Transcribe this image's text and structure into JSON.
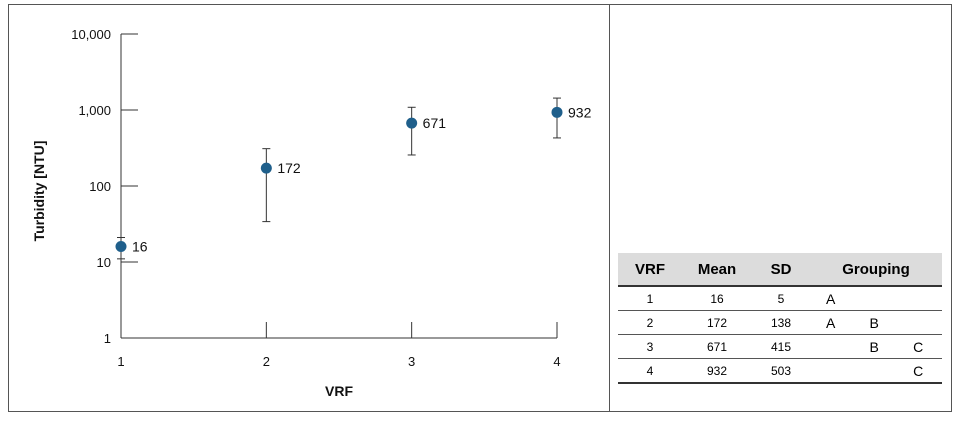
{
  "chart_data": {
    "type": "scatter",
    "title": "",
    "xlabel": "VRF",
    "ylabel": "Turbidity [NTU]",
    "yscale": "log",
    "ylim": [
      1,
      10000
    ],
    "xlim": [
      1,
      4
    ],
    "x_ticks": [
      "1",
      "2",
      "3",
      "4"
    ],
    "y_ticks": [
      {
        "value": 1,
        "label": "1"
      },
      {
        "value": 10,
        "label": "10"
      },
      {
        "value": 100,
        "label": "100"
      },
      {
        "value": 1000,
        "label": "1,000"
      },
      {
        "value": 10000,
        "label": "10,000"
      }
    ],
    "grid": false,
    "marker_color": "#1f5f8b",
    "points": [
      {
        "x": 1,
        "y": 16,
        "label": "16",
        "err_low": 11,
        "err_high": 21
      },
      {
        "x": 2,
        "y": 172,
        "label": "172",
        "err_low": 34,
        "err_high": 310
      },
      {
        "x": 3,
        "y": 671,
        "label": "671",
        "err_low": 256,
        "err_high": 1086
      },
      {
        "x": 4,
        "y": 932,
        "label": "932",
        "err_low": 429,
        "err_high": 1435
      }
    ]
  },
  "table": {
    "headers": [
      "VRF",
      "Mean",
      "SD",
      "Grouping"
    ],
    "rows": [
      {
        "vrf": "1",
        "mean": "16",
        "sd": "5",
        "g1": "A",
        "g2": "",
        "g3": ""
      },
      {
        "vrf": "2",
        "mean": "172",
        "sd": "138",
        "g1": "A",
        "g2": "B",
        "g3": ""
      },
      {
        "vrf": "3",
        "mean": "671",
        "sd": "415",
        "g1": "",
        "g2": "B",
        "g3": "C"
      },
      {
        "vrf": "4",
        "mean": "932",
        "sd": "503",
        "g1": "",
        "g2": "",
        "g3": "C"
      }
    ]
  }
}
